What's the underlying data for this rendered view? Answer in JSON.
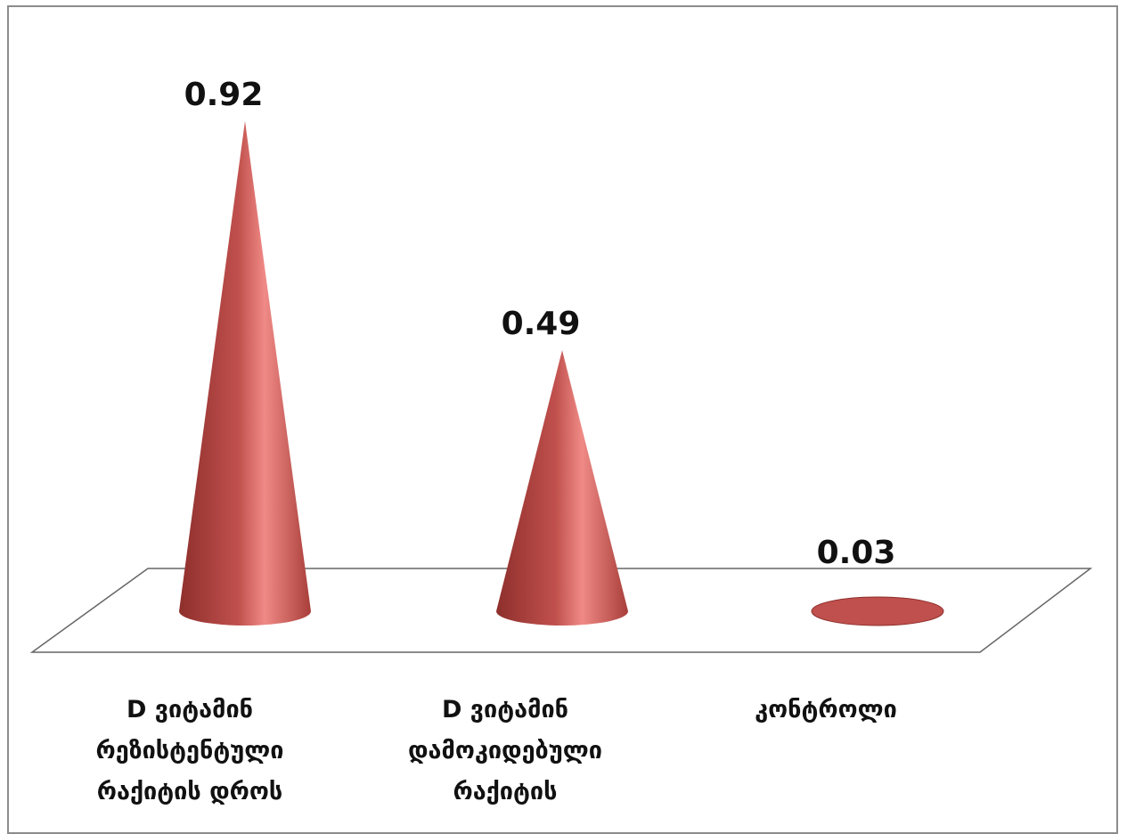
{
  "chart_data": {
    "type": "bar",
    "shape": "3d-cone",
    "categories": [
      [
        "D ვიტამინ",
        "რეზისტენტული",
        "რაქიტის დროს"
      ],
      [
        "D ვიტამინ",
        "დამოკიდებული",
        "რაქიტის"
      ],
      [
        "კონტროლი"
      ]
    ],
    "values": [
      0.92,
      0.49,
      0.03
    ],
    "data_labels": [
      "0.92",
      "0.49",
      "0.03"
    ],
    "ylim": [
      0,
      1
    ],
    "grid": false,
    "legend": "none",
    "colors": {
      "cone": "#c0504d",
      "cone_light": "#f08a86",
      "cone_dark": "#8e2f2c",
      "floor_stroke": "#666666"
    }
  }
}
